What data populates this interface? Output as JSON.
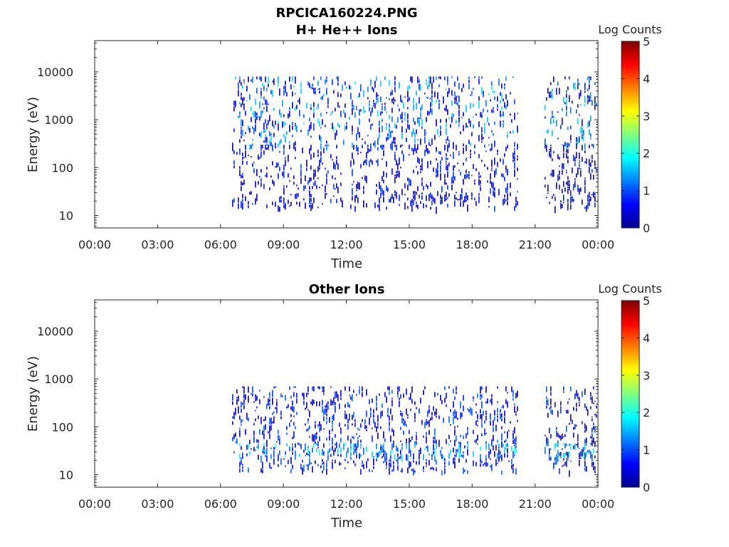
{
  "figure_title": "RPCICA160224.PNG",
  "chart_data": [
    {
      "type": "heatmap",
      "title": "H+ He++ Ions",
      "xlabel": "Time",
      "ylabel": "Energy (eV)",
      "y_scale": "log",
      "ylim": [
        5.5,
        45000
      ],
      "xlim": [
        0,
        24
      ],
      "x_ticks": [
        "00:00",
        "03:00",
        "06:00",
        "09:00",
        "12:00",
        "15:00",
        "18:00",
        "21:00",
        "00:00"
      ],
      "y_ticks": [
        10,
        100,
        1000,
        10000
      ],
      "y_tick_labels": [
        "10",
        "100",
        "1000",
        "10000"
      ],
      "colorbar": {
        "label": "Log Counts",
        "ticks": [
          "0",
          "1",
          "2",
          "3",
          "4",
          "5"
        ],
        "range": [
          0,
          5
        ],
        "colormap": "jet"
      },
      "data_segments": [
        {
          "start_hour": 6.55,
          "end_hour": 20.15
        },
        {
          "start_hour": 21.45,
          "end_hour": 23.95
        }
      ],
      "intensity_profile": [
        {
          "energy_band": [
            300,
            8000
          ],
          "log_counts_typical": [
            0,
            1.8
          ]
        },
        {
          "energy_band": [
            15,
            300
          ],
          "log_counts_typical": [
            0,
            1
          ]
        }
      ]
    },
    {
      "type": "heatmap",
      "title": "Other Ions",
      "xlabel": "Time",
      "ylabel": "Energy (eV)",
      "y_scale": "log",
      "ylim": [
        5.5,
        45000
      ],
      "xlim": [
        0,
        24
      ],
      "x_ticks": [
        "00:00",
        "03:00",
        "06:00",
        "09:00",
        "12:00",
        "15:00",
        "18:00",
        "21:00",
        "00:00"
      ],
      "y_ticks": [
        10,
        100,
        1000,
        10000
      ],
      "y_tick_labels": [
        "10",
        "100",
        "1000",
        "10000"
      ],
      "colorbar": {
        "label": "Log Counts",
        "ticks": [
          "0",
          "1",
          "2",
          "3",
          "4",
          "5"
        ],
        "range": [
          0,
          5
        ],
        "colormap": "jet"
      },
      "data_segments": [
        {
          "start_hour": 6.55,
          "end_hour": 20.15
        },
        {
          "start_hour": 21.45,
          "end_hour": 23.95
        }
      ],
      "intensity_profile": [
        {
          "energy_band": [
            12,
            700
          ],
          "log_counts_typical": [
            0,
            1.2
          ]
        },
        {
          "energy_band": [
            25,
            45
          ],
          "log_counts_typical": [
            1,
            2
          ]
        }
      ]
    }
  ]
}
